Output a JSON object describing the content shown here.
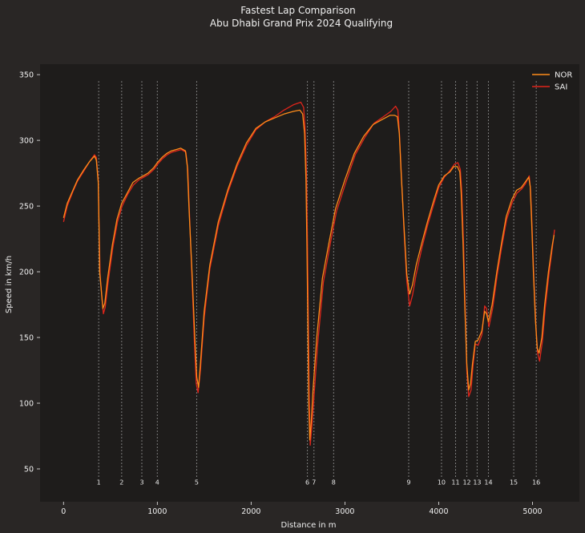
{
  "chart_data": {
    "type": "line",
    "title": "Fastest Lap Comparison",
    "subtitle": "Abu Dhabi Grand Prix 2024 Qualifying",
    "xlabel": "Distance in m",
    "ylabel": "Speed in km/h",
    "xlim": [
      -250,
      5500
    ],
    "ylim": [
      25,
      358
    ],
    "xticks": [
      0,
      1000,
      2000,
      3000,
      4000,
      5000
    ],
    "yticks": [
      50,
      100,
      150,
      200,
      250,
      300,
      350
    ],
    "legend_position": "top-right",
    "series": [
      {
        "name": "NOR",
        "color": "#ff8c1a",
        "points": [
          [
            0,
            241
          ],
          [
            40,
            252
          ],
          [
            100,
            262
          ],
          [
            150,
            270
          ],
          [
            220,
            278
          ],
          [
            280,
            284
          ],
          [
            330,
            288
          ],
          [
            350,
            285
          ],
          [
            370,
            268
          ],
          [
            380,
            230
          ],
          [
            385,
            200
          ],
          [
            400,
            188
          ],
          [
            420,
            172
          ],
          [
            440,
            176
          ],
          [
            470,
            195
          ],
          [
            520,
            220
          ],
          [
            570,
            240
          ],
          [
            620,
            252
          ],
          [
            680,
            260
          ],
          [
            740,
            268
          ],
          [
            800,
            271
          ],
          [
            850,
            273
          ],
          [
            900,
            275
          ],
          [
            960,
            279
          ],
          [
            1000,
            283
          ],
          [
            1050,
            287
          ],
          [
            1100,
            290
          ],
          [
            1150,
            292
          ],
          [
            1200,
            293
          ],
          [
            1250,
            294
          ],
          [
            1300,
            292
          ],
          [
            1320,
            280
          ],
          [
            1340,
            245
          ],
          [
            1370,
            200
          ],
          [
            1400,
            150
          ],
          [
            1420,
            120
          ],
          [
            1440,
            112
          ],
          [
            1460,
            130
          ],
          [
            1500,
            170
          ],
          [
            1560,
            205
          ],
          [
            1650,
            238
          ],
          [
            1750,
            262
          ],
          [
            1850,
            282
          ],
          [
            1950,
            298
          ],
          [
            2050,
            309
          ],
          [
            2150,
            314
          ],
          [
            2250,
            317
          ],
          [
            2350,
            320
          ],
          [
            2450,
            322
          ],
          [
            2520,
            323
          ],
          [
            2550,
            320
          ],
          [
            2570,
            305
          ],
          [
            2585,
            270
          ],
          [
            2595,
            220
          ],
          [
            2605,
            160
          ],
          [
            2615,
            100
          ],
          [
            2625,
            72
          ],
          [
            2640,
            85
          ],
          [
            2660,
            110
          ],
          [
            2700,
            150
          ],
          [
            2760,
            195
          ],
          [
            2830,
            222
          ],
          [
            2900,
            248
          ],
          [
            3000,
            270
          ],
          [
            3100,
            290
          ],
          [
            3200,
            303
          ],
          [
            3300,
            312
          ],
          [
            3400,
            316
          ],
          [
            3480,
            319
          ],
          [
            3530,
            319
          ],
          [
            3560,
            318
          ],
          [
            3580,
            305
          ],
          [
            3600,
            275
          ],
          [
            3630,
            235
          ],
          [
            3660,
            198
          ],
          [
            3690,
            183
          ],
          [
            3720,
            190
          ],
          [
            3760,
            205
          ],
          [
            3820,
            222
          ],
          [
            3880,
            238
          ],
          [
            3950,
            255
          ],
          [
            4000,
            266
          ],
          [
            4060,
            273
          ],
          [
            4120,
            276
          ],
          [
            4160,
            280
          ],
          [
            4200,
            280
          ],
          [
            4225,
            276
          ],
          [
            4240,
            260
          ],
          [
            4260,
            220
          ],
          [
            4280,
            170
          ],
          [
            4300,
            130
          ],
          [
            4320,
            110
          ],
          [
            4340,
            115
          ],
          [
            4360,
            130
          ],
          [
            4390,
            147
          ],
          [
            4420,
            148
          ],
          [
            4460,
            155
          ],
          [
            4490,
            170
          ],
          [
            4510,
            168
          ],
          [
            4530,
            162
          ],
          [
            4570,
            175
          ],
          [
            4620,
            200
          ],
          [
            4670,
            222
          ],
          [
            4720,
            242
          ],
          [
            4780,
            255
          ],
          [
            4830,
            262
          ],
          [
            4880,
            264
          ],
          [
            4920,
            268
          ],
          [
            4960,
            272
          ],
          [
            4975,
            265
          ],
          [
            4990,
            240
          ],
          [
            5010,
            200
          ],
          [
            5030,
            165
          ],
          [
            5050,
            142
          ],
          [
            5070,
            138
          ],
          [
            5100,
            150
          ],
          [
            5130,
            175
          ],
          [
            5170,
            200
          ],
          [
            5210,
            220
          ],
          [
            5230,
            228
          ]
        ]
      },
      {
        "name": "SAI",
        "color": "#e0251b",
        "points": [
          [
            0,
            238
          ],
          [
            40,
            250
          ],
          [
            100,
            261
          ],
          [
            150,
            269
          ],
          [
            220,
            277
          ],
          [
            280,
            284
          ],
          [
            330,
            289
          ],
          [
            350,
            287
          ],
          [
            370,
            270
          ],
          [
            380,
            232
          ],
          [
            390,
            198
          ],
          [
            410,
            180
          ],
          [
            425,
            168
          ],
          [
            445,
            173
          ],
          [
            475,
            192
          ],
          [
            525,
            218
          ],
          [
            575,
            238
          ],
          [
            625,
            250
          ],
          [
            685,
            259
          ],
          [
            745,
            266
          ],
          [
            805,
            270
          ],
          [
            855,
            272
          ],
          [
            905,
            274
          ],
          [
            965,
            278
          ],
          [
            1005,
            282
          ],
          [
            1055,
            286
          ],
          [
            1105,
            289
          ],
          [
            1155,
            291
          ],
          [
            1205,
            292
          ],
          [
            1255,
            293
          ],
          [
            1305,
            291
          ],
          [
            1325,
            278
          ],
          [
            1345,
            240
          ],
          [
            1370,
            195
          ],
          [
            1395,
            148
          ],
          [
            1415,
            115
          ],
          [
            1435,
            108
          ],
          [
            1460,
            125
          ],
          [
            1500,
            165
          ],
          [
            1560,
            202
          ],
          [
            1650,
            235
          ],
          [
            1750,
            260
          ],
          [
            1850,
            280
          ],
          [
            1950,
            296
          ],
          [
            2050,
            308
          ],
          [
            2150,
            314
          ],
          [
            2250,
            318
          ],
          [
            2350,
            323
          ],
          [
            2450,
            327
          ],
          [
            2530,
            329
          ],
          [
            2560,
            325
          ],
          [
            2575,
            310
          ],
          [
            2590,
            275
          ],
          [
            2600,
            225
          ],
          [
            2610,
            165
          ],
          [
            2620,
            105
          ],
          [
            2630,
            68
          ],
          [
            2645,
            80
          ],
          [
            2670,
            105
          ],
          [
            2710,
            145
          ],
          [
            2770,
            192
          ],
          [
            2840,
            220
          ],
          [
            2910,
            246
          ],
          [
            3010,
            268
          ],
          [
            3110,
            289
          ],
          [
            3210,
            302
          ],
          [
            3310,
            313
          ],
          [
            3410,
            318
          ],
          [
            3490,
            322
          ],
          [
            3540,
            326
          ],
          [
            3565,
            323
          ],
          [
            3580,
            307
          ],
          [
            3600,
            277
          ],
          [
            3630,
            232
          ],
          [
            3660,
            193
          ],
          [
            3690,
            174
          ],
          [
            3720,
            182
          ],
          [
            3760,
            198
          ],
          [
            3820,
            218
          ],
          [
            3880,
            235
          ],
          [
            3950,
            252
          ],
          [
            4000,
            264
          ],
          [
            4060,
            272
          ],
          [
            4120,
            277
          ],
          [
            4170,
            282
          ],
          [
            4205,
            283
          ],
          [
            4230,
            278
          ],
          [
            4245,
            262
          ],
          [
            4265,
            220
          ],
          [
            4285,
            165
          ],
          [
            4300,
            125
          ],
          [
            4320,
            105
          ],
          [
            4345,
            110
          ],
          [
            4365,
            128
          ],
          [
            4390,
            145
          ],
          [
            4420,
            144
          ],
          [
            4460,
            152
          ],
          [
            4490,
            174
          ],
          [
            4510,
            172
          ],
          [
            4535,
            158
          ],
          [
            4575,
            172
          ],
          [
            4625,
            198
          ],
          [
            4675,
            220
          ],
          [
            4725,
            240
          ],
          [
            4785,
            253
          ],
          [
            4835,
            260
          ],
          [
            4885,
            263
          ],
          [
            4925,
            267
          ],
          [
            4965,
            273
          ],
          [
            4980,
            262
          ],
          [
            4995,
            235
          ],
          [
            5015,
            195
          ],
          [
            5035,
            160
          ],
          [
            5055,
            138
          ],
          [
            5075,
            132
          ],
          [
            5105,
            147
          ],
          [
            5135,
            172
          ],
          [
            5175,
            198
          ],
          [
            5215,
            220
          ],
          [
            5235,
            232
          ]
        ]
      }
    ],
    "corners": [
      {
        "number": "1",
        "distance": 375
      },
      {
        "number": "2",
        "distance": 620
      },
      {
        "number": "3",
        "distance": 835
      },
      {
        "number": "4",
        "distance": 1000
      },
      {
        "number": "5",
        "distance": 1420
      },
      {
        "number": "6",
        "distance": 2600
      },
      {
        "number": "7",
        "distance": 2670
      },
      {
        "number": "8",
        "distance": 2880
      },
      {
        "number": "9",
        "distance": 3680
      },
      {
        "number": "10",
        "distance": 4030
      },
      {
        "number": "11",
        "distance": 4180
      },
      {
        "number": "12",
        "distance": 4300
      },
      {
        "number": "13",
        "distance": 4410
      },
      {
        "number": "14",
        "distance": 4530
      },
      {
        "number": "15",
        "distance": 4800
      },
      {
        "number": "16",
        "distance": 5040
      }
    ]
  },
  "colors": {
    "figure_bg": "#292625",
    "plot_bg": "#1e1c1b",
    "text": "#f0f0f0",
    "corner_line": "#9a9a9a"
  }
}
